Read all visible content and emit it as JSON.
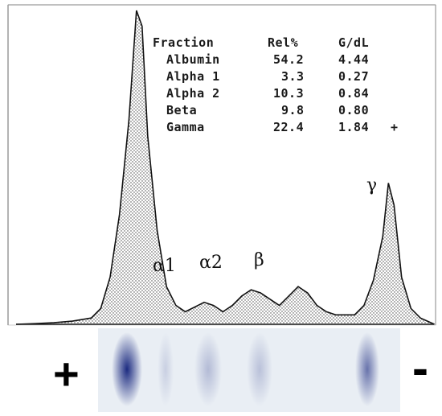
{
  "table": {
    "headers": [
      "Fraction",
      "Rel%",
      "G/dL"
    ],
    "rows": [
      {
        "fraction": "Albumin",
        "rel": "54.2",
        "gdl": "4.44",
        "flag": ""
      },
      {
        "fraction": "Alpha 1",
        "rel": "3.3",
        "gdl": "0.27",
        "flag": ""
      },
      {
        "fraction": "Alpha 2",
        "rel": "10.3",
        "gdl": "0.84",
        "flag": ""
      },
      {
        "fraction": "Beta",
        "rel": "9.8",
        "gdl": "0.80",
        "flag": ""
      },
      {
        "fraction": "Gamma",
        "rel": "22.4",
        "gdl": "1.84",
        "flag": "+"
      }
    ]
  },
  "peak_labels": {
    "alpha1": "α1",
    "alpha2": "α2",
    "beta": "β",
    "gamma": "γ"
  },
  "gel": {
    "anode": "+",
    "cathode": "-",
    "band_color": "#1b2a80"
  },
  "chart_data": {
    "type": "area",
    "title": "",
    "xlabel": "",
    "ylabel": "",
    "series": [
      {
        "values": [
          [
            0,
            0
          ],
          [
            2,
            0.002
          ],
          [
            4,
            0.005
          ],
          [
            6,
            0.01
          ],
          [
            8,
            0.02
          ],
          [
            9,
            0.05
          ],
          [
            10,
            0.15
          ],
          [
            11,
            0.35
          ],
          [
            12,
            0.65
          ],
          [
            12.8,
            1.0
          ],
          [
            13.4,
            0.95
          ],
          [
            14,
            0.6
          ],
          [
            15,
            0.3
          ],
          [
            16,
            0.12
          ],
          [
            17,
            0.06
          ],
          [
            18,
            0.04
          ],
          [
            19,
            0.055
          ],
          [
            20,
            0.07
          ],
          [
            21,
            0.06
          ],
          [
            22,
            0.04
          ],
          [
            23,
            0.06
          ],
          [
            24,
            0.09
          ],
          [
            25,
            0.11
          ],
          [
            26,
            0.1
          ],
          [
            27,
            0.08
          ],
          [
            28,
            0.06
          ],
          [
            29,
            0.09
          ],
          [
            30,
            0.12
          ],
          [
            31,
            0.1
          ],
          [
            32,
            0.06
          ],
          [
            33,
            0.04
          ],
          [
            34,
            0.03
          ],
          [
            35,
            0.03
          ],
          [
            36,
            0.03
          ],
          [
            37,
            0.06
          ],
          [
            38,
            0.14
          ],
          [
            39,
            0.28
          ],
          [
            39.6,
            0.45
          ],
          [
            40.2,
            0.38
          ],
          [
            41,
            0.15
          ],
          [
            42,
            0.05
          ],
          [
            43,
            0.02
          ],
          [
            44.5,
            0.0
          ]
        ]
      }
    ],
    "fractions": [
      "Albumin",
      "Alpha 1",
      "Alpha 2",
      "Beta",
      "Gamma"
    ],
    "rel_percent": [
      54.2,
      3.3,
      10.3,
      9.8,
      22.4
    ],
    "g_dl": [
      4.44,
      0.27,
      0.84,
      0.8,
      1.84
    ],
    "gel_band_intensity": [
      1.0,
      0.15,
      0.25,
      0.22,
      0.6
    ],
    "grid": false,
    "legend": "none"
  }
}
